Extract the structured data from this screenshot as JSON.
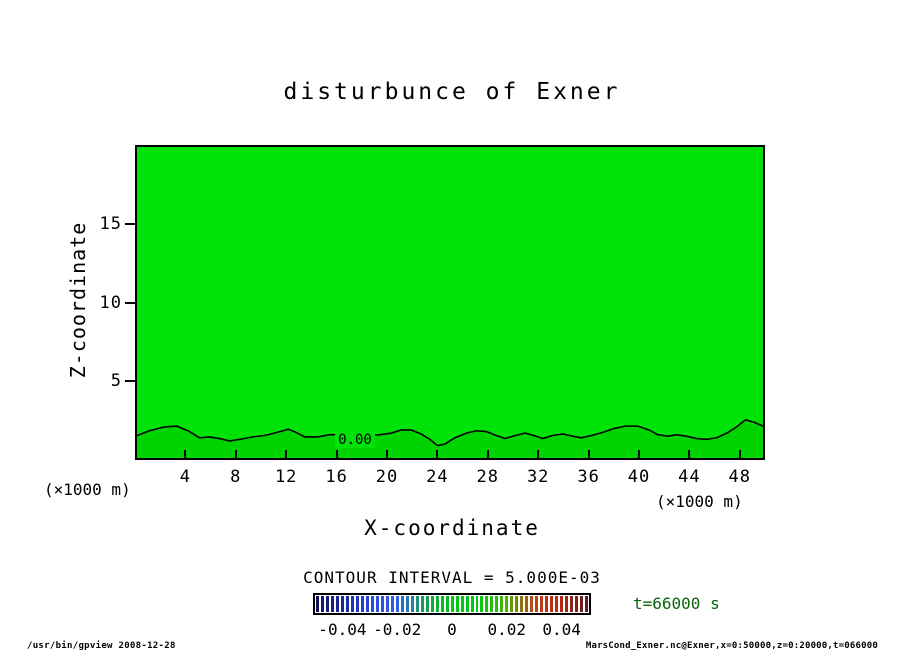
{
  "title": "disturbunce of Exner",
  "axes": {
    "x_label": "X-coordinate",
    "y_label": "Z-coordinate",
    "x_unit_left": "(×1000 m)",
    "x_unit_right": "(×1000 m)"
  },
  "contour_info": {
    "zero_label": "0.00",
    "interval_text": "CONTOUR INTERVAL = 5.000E-03"
  },
  "annotations": {
    "time_label": "t=66000 s",
    "footer_left": "/usr/bin/gpview  2008-12-28",
    "footer_right": "MarsCond_Exner.nc@Exner,x=0:50000,z=0:20000,t=066000"
  },
  "colors": {
    "field_fill": "#00e308",
    "field_fill_lower": "#00d400",
    "contour_line": "#000000",
    "time_label_color": "#0a640a",
    "frame_color": "#000000",
    "colorbar_anchors": [
      "#12125a",
      "#1c2aa0",
      "#2848dc",
      "#2f62e8",
      "#18a050",
      "#00c814",
      "#00c814",
      "#46b400",
      "#c04614",
      "#b42814",
      "#5f1e1e"
    ]
  },
  "chart_data": {
    "type": "heatmap",
    "title": "disturbunce of Exner",
    "xlabel": "X-coordinate",
    "ylabel": "Z-coordinate",
    "x_unit": "×1000 m",
    "y_unit": "×1000 m",
    "xlim": [
      0,
      50
    ],
    "ylim": [
      0,
      20
    ],
    "x_ticks": [
      4,
      8,
      12,
      16,
      20,
      24,
      28,
      32,
      36,
      40,
      44,
      48
    ],
    "y_ticks": [
      5,
      10,
      15
    ],
    "grid": false,
    "legend": "horizontal colorbar below plot",
    "contour_interval": 0.005,
    "colorbar_range": [
      -0.05,
      0.05
    ],
    "colorbar_ticks": [
      "-0.04",
      "-0.02",
      "0",
      "0.02",
      "0.04"
    ],
    "field_summary": "Exner-function disturbance is ~0 (single green tone) over nearly the whole domain; a single 0.00 contour undulates near z≈1-2 (×1000 m) with slightly negative values in the shallow layer below it",
    "zero_contour": [
      [
        0,
        1.45
      ],
      [
        1,
        1.75
      ],
      [
        2.2,
        2.0
      ],
      [
        3.2,
        2.05
      ],
      [
        4.2,
        1.7
      ],
      [
        5,
        1.3
      ],
      [
        5.8,
        1.35
      ],
      [
        6.6,
        1.25
      ],
      [
        7.4,
        1.1
      ],
      [
        8.2,
        1.2
      ],
      [
        9.2,
        1.35
      ],
      [
        10.2,
        1.45
      ],
      [
        11.2,
        1.65
      ],
      [
        12.1,
        1.85
      ],
      [
        12.7,
        1.65
      ],
      [
        13.4,
        1.35
      ],
      [
        14.4,
        1.35
      ],
      [
        15.4,
        1.5
      ],
      [
        16.4,
        1.5
      ],
      [
        17.4,
        1.45
      ],
      [
        18.4,
        1.45
      ],
      [
        19.4,
        1.5
      ],
      [
        20.3,
        1.6
      ],
      [
        21.1,
        1.8
      ],
      [
        21.9,
        1.8
      ],
      [
        22.7,
        1.55
      ],
      [
        23.4,
        1.2
      ],
      [
        24.0,
        0.8
      ],
      [
        24.6,
        0.9
      ],
      [
        25.4,
        1.3
      ],
      [
        26.3,
        1.6
      ],
      [
        27.1,
        1.75
      ],
      [
        27.9,
        1.7
      ],
      [
        28.7,
        1.45
      ],
      [
        29.4,
        1.25
      ],
      [
        30.2,
        1.45
      ],
      [
        31,
        1.6
      ],
      [
        31.7,
        1.45
      ],
      [
        32.4,
        1.25
      ],
      [
        33.2,
        1.45
      ],
      [
        34,
        1.55
      ],
      [
        34.8,
        1.4
      ],
      [
        35.5,
        1.3
      ],
      [
        36.3,
        1.45
      ],
      [
        37.2,
        1.65
      ],
      [
        38.1,
        1.9
      ],
      [
        39,
        2.05
      ],
      [
        40,
        2.05
      ],
      [
        40.9,
        1.8
      ],
      [
        41.6,
        1.5
      ],
      [
        42.4,
        1.4
      ],
      [
        43.1,
        1.5
      ],
      [
        43.9,
        1.4
      ],
      [
        44.7,
        1.25
      ],
      [
        45.5,
        1.2
      ],
      [
        46.3,
        1.3
      ],
      [
        47.1,
        1.6
      ],
      [
        47.9,
        2.0
      ],
      [
        48.6,
        2.45
      ],
      [
        49.3,
        2.3
      ],
      [
        50,
        2.05
      ]
    ]
  }
}
